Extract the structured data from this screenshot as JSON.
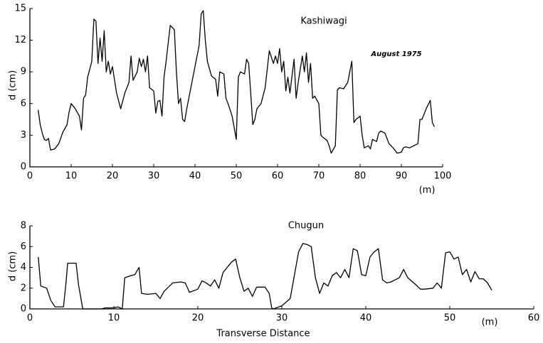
{
  "chart_data": [
    {
      "type": "line",
      "title": "Kashiwagi",
      "annotation": "August 1975",
      "x_unit": "(m)",
      "y_label": "d (cm)",
      "color": "#000000",
      "xlim": [
        0,
        100
      ],
      "xticks": [
        0,
        10,
        20,
        30,
        40,
        50,
        60,
        70,
        80,
        90,
        100
      ],
      "ylim": [
        0,
        15
      ],
      "yticks": [
        0,
        3,
        6,
        9,
        12,
        15
      ],
      "x": [
        2,
        2.5,
        3,
        3.5,
        4,
        4.5,
        5,
        6,
        7,
        8,
        9,
        9.5,
        10,
        11,
        12,
        12.5,
        13,
        13.5,
        14,
        15,
        15.5,
        16,
        16.5,
        17,
        17.5,
        18,
        18.5,
        19,
        19.5,
        20,
        21,
        22,
        23,
        24,
        24.5,
        25,
        26,
        26.5,
        27,
        27.5,
        28,
        28.5,
        29,
        30,
        30.5,
        31,
        31.5,
        32,
        32.5,
        33,
        34,
        35,
        35.5,
        36,
        36.5,
        37,
        37.5,
        38,
        39,
        40,
        41,
        41.5,
        42,
        42.5,
        43,
        44,
        45,
        45.5,
        46,
        47,
        47.5,
        48,
        49,
        50,
        50.5,
        51,
        52,
        52.5,
        53,
        53.5,
        54,
        54.5,
        55,
        56,
        57,
        58,
        59,
        59.5,
        60,
        60.5,
        61,
        61.5,
        62,
        62.5,
        63,
        64,
        64.5,
        65,
        66,
        66.5,
        67,
        67.5,
        68,
        68.5,
        69,
        70,
        70.5,
        71,
        72,
        72.5,
        73,
        74,
        74.5,
        75,
        76,
        77,
        78,
        78.5,
        79,
        80,
        80.5,
        81,
        82,
        82.5,
        83,
        84,
        84.5,
        85,
        86,
        87,
        88,
        89,
        90,
        90.5,
        91,
        92,
        93,
        94,
        94.5,
        95,
        96,
        97,
        97.5,
        98
      ],
      "values": [
        5.4,
        4,
        3.2,
        2.6,
        2.5,
        2.7,
        1.6,
        1.7,
        2.2,
        3.3,
        4,
        5.2,
        6,
        5.5,
        4.8,
        3.5,
        6.5,
        6.8,
        8.5,
        10,
        14,
        13.8,
        9.8,
        12.2,
        10,
        12.9,
        9,
        10,
        8.8,
        9.5,
        7,
        5.5,
        7,
        8,
        10.5,
        8.2,
        9,
        10.3,
        9.5,
        10.2,
        9,
        10.5,
        7.5,
        7.2,
        5.1,
        6.2,
        6.3,
        4.8,
        8.5,
        10,
        13.4,
        13,
        9,
        6,
        6.5,
        4.5,
        4.3,
        5.5,
        7.5,
        9.5,
        11.5,
        14.5,
        14.8,
        12,
        10,
        8.6,
        8.3,
        6.7,
        9,
        8.8,
        6.5,
        6,
        4.8,
        2.6,
        8.5,
        9,
        8.8,
        10.2,
        9.8,
        7,
        4,
        4.5,
        5.5,
        6,
        7.5,
        11,
        9.8,
        10.5,
        9.8,
        11.2,
        9,
        10,
        7.2,
        8.5,
        7,
        10.2,
        6.5,
        8,
        10.5,
        9,
        10.8,
        8,
        9.8,
        6.5,
        6.7,
        6,
        3,
        2.8,
        2.5,
        2,
        1.3,
        2,
        7.3,
        7.5,
        7.4,
        8,
        10,
        4.2,
        4.5,
        4.8,
        3,
        1.8,
        2,
        1.7,
        2.6,
        2.4,
        3.2,
        3.4,
        3.2,
        2.2,
        1.8,
        1.3,
        1.4,
        1.8,
        1.9,
        1.8,
        2,
        2.2,
        4.5,
        4.5,
        5.5,
        6.3,
        4.2,
        3.8
      ]
    },
    {
      "type": "line",
      "title": "Chugun",
      "x_label": "Transverse Distance",
      "x_unit": "(m)",
      "y_label": "d (cm)",
      "color": "#000000",
      "xlim": [
        0,
        60
      ],
      "xticks": [
        0,
        10,
        20,
        30,
        40,
        50,
        60
      ],
      "ylim": [
        0,
        8
      ],
      "yticks": [
        0,
        2,
        4,
        6,
        8
      ],
      "x": [
        1,
        1.3,
        2,
        2.5,
        3,
        4,
        4.3,
        4.5,
        5.5,
        5.8,
        6.3,
        8.5,
        9,
        10,
        10.5,
        11,
        11.3,
        12,
        12.5,
        13,
        13.3,
        14,
        15,
        15.5,
        16,
        17,
        18,
        18.5,
        19,
        20,
        20.5,
        21,
        21.5,
        22,
        22.5,
        23,
        24,
        24.5,
        25,
        25.5,
        26,
        26.5,
        27,
        28,
        28.5,
        28.8,
        29,
        30,
        31,
        32,
        32.5,
        33,
        33.5,
        34,
        34.5,
        35,
        35.5,
        36,
        36.5,
        37,
        37.5,
        38,
        38.5,
        39,
        39.5,
        40,
        40.5,
        41,
        41.5,
        42,
        42.5,
        43,
        44,
        44.5,
        45,
        46,
        46.5,
        47,
        48,
        48.5,
        49,
        49.5,
        50,
        50.5,
        51,
        51.5,
        52,
        52.5,
        53,
        53.5,
        54,
        54.5,
        55
      ],
      "values": [
        5,
        2.2,
        2,
        0.8,
        0.2,
        0.2,
        2.5,
        4.4,
        4.4,
        2.3,
        0,
        0,
        0.1,
        0.1,
        0.2,
        0,
        3,
        3.2,
        3.3,
        4,
        1.5,
        1.4,
        1.5,
        1,
        1.7,
        2.5,
        2.6,
        2.5,
        1.6,
        1.9,
        2.7,
        2.5,
        2.2,
        2.8,
        2,
        3.5,
        4.5,
        4.8,
        3,
        1.7,
        2,
        1.2,
        2.1,
        2.1,
        1.5,
        0.1,
        0,
        0.3,
        1,
        5.5,
        6.3,
        6.2,
        6,
        3,
        1.5,
        2.5,
        2.2,
        3.2,
        3.5,
        3,
        3.8,
        3,
        5.8,
        5.6,
        3.3,
        3.2,
        5,
        5.5,
        5.8,
        2.8,
        2.5,
        2.6,
        3,
        3.8,
        3,
        2.3,
        1.9,
        1.9,
        2,
        2.5,
        2,
        5.4,
        5.5,
        4.8,
        5,
        3.3,
        3.8,
        2.6,
        3.6,
        2.9,
        2.9,
        2.5,
        1.8
      ]
    }
  ]
}
